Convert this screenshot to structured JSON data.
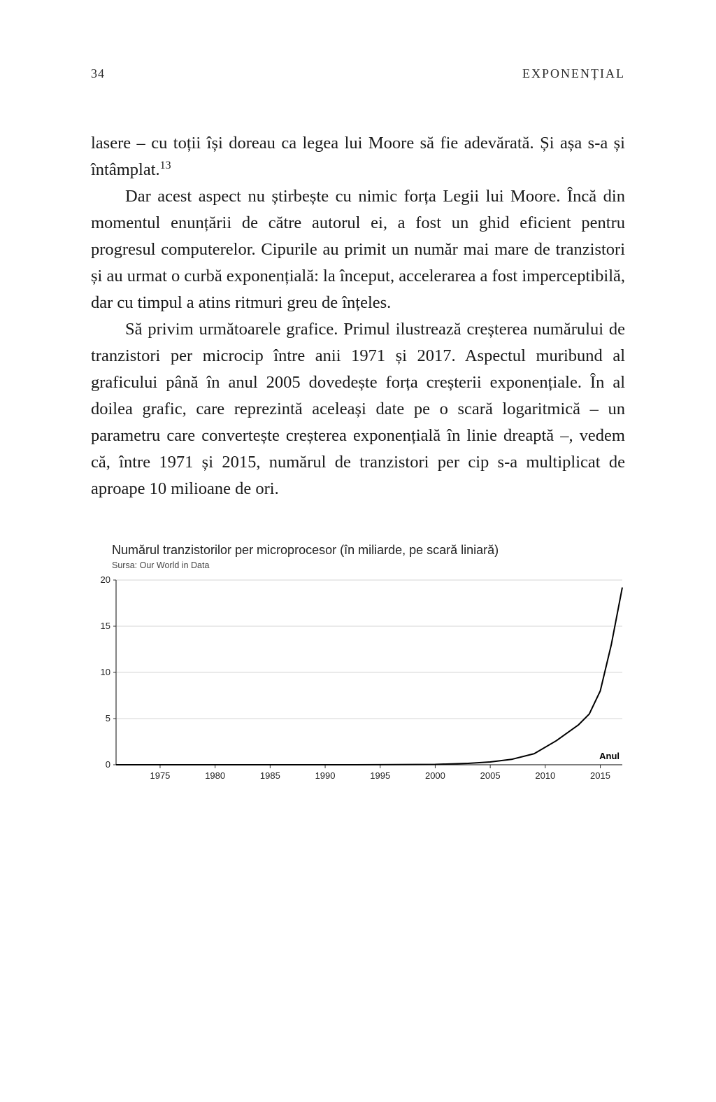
{
  "header": {
    "page_number": "34",
    "running_head": "EXPONENȚIAL"
  },
  "paragraphs": {
    "p1_a": "lasere – cu toții își doreau ca legea lui Moore să fie adevărată. Și așa s-a și întâmplat.",
    "p1_sup": "13",
    "p2": "Dar acest aspect nu știrbește cu nimic forța Legii lui Moore. Încă din momentul enunțării de către autorul ei, a fost un ghid eficient pentru progresul computerelor. Cipurile au primit un număr mai mare de tranzistori și au urmat o curbă exponențială: la început, accelerarea a fost imperceptibilă, dar cu timpul a atins ritmuri greu de înțeles.",
    "p3": "Să privim următoarele grafice. Primul ilustrează creșterea numărului de tranzistori per microcip între anii 1971 și 2017. Aspectul muribund al graficului până în anul 2005 dovedește forța creșterii exponențiale. În al doilea grafic, care reprezintă aceleași date pe o scară logaritmică – un parametru care con­vertește creșterea exponențială în linie dreaptă –, vedem că, între 1971 și 2015, numărul de tranzistori per cip s-a multipli­cat de aproape 10 milioane de ori."
  },
  "chart": {
    "type": "line",
    "title": "Numărul tranzistorilor per microprocesor (în miliarde, pe scară liniară)",
    "source": "Sursa: Our World in Data",
    "x_axis_label": "Anul",
    "x_ticks": [
      1975,
      1980,
      1985,
      1990,
      1995,
      2000,
      2005,
      2010,
      2015
    ],
    "y_ticks": [
      0,
      5,
      10,
      15,
      20
    ],
    "xlim": [
      1971,
      2017
    ],
    "ylim": [
      0,
      20
    ],
    "line_color": "#000000",
    "line_width": 2,
    "grid_color": "#d4d4d4",
    "axis_color": "#333333",
    "background_color": "#ffffff",
    "tick_fontsize": 13,
    "title_fontsize": 18,
    "source_fontsize": 12.5,
    "data": [
      {
        "x": 1971,
        "y": 2e-06
      },
      {
        "x": 1975,
        "y": 6e-06
      },
      {
        "x": 1980,
        "y": 3e-05
      },
      {
        "x": 1985,
        "y": 0.00027
      },
      {
        "x": 1990,
        "y": 0.0012
      },
      {
        "x": 1995,
        "y": 0.0055
      },
      {
        "x": 2000,
        "y": 0.042
      },
      {
        "x": 2003,
        "y": 0.15
      },
      {
        "x": 2005,
        "y": 0.3
      },
      {
        "x": 2007,
        "y": 0.6
      },
      {
        "x": 2009,
        "y": 1.2
      },
      {
        "x": 2011,
        "y": 2.6
      },
      {
        "x": 2013,
        "y": 4.3
      },
      {
        "x": 2014,
        "y": 5.5
      },
      {
        "x": 2015,
        "y": 8.0
      },
      {
        "x": 2016,
        "y": 13.0
      },
      {
        "x": 2017,
        "y": 19.2
      }
    ]
  }
}
